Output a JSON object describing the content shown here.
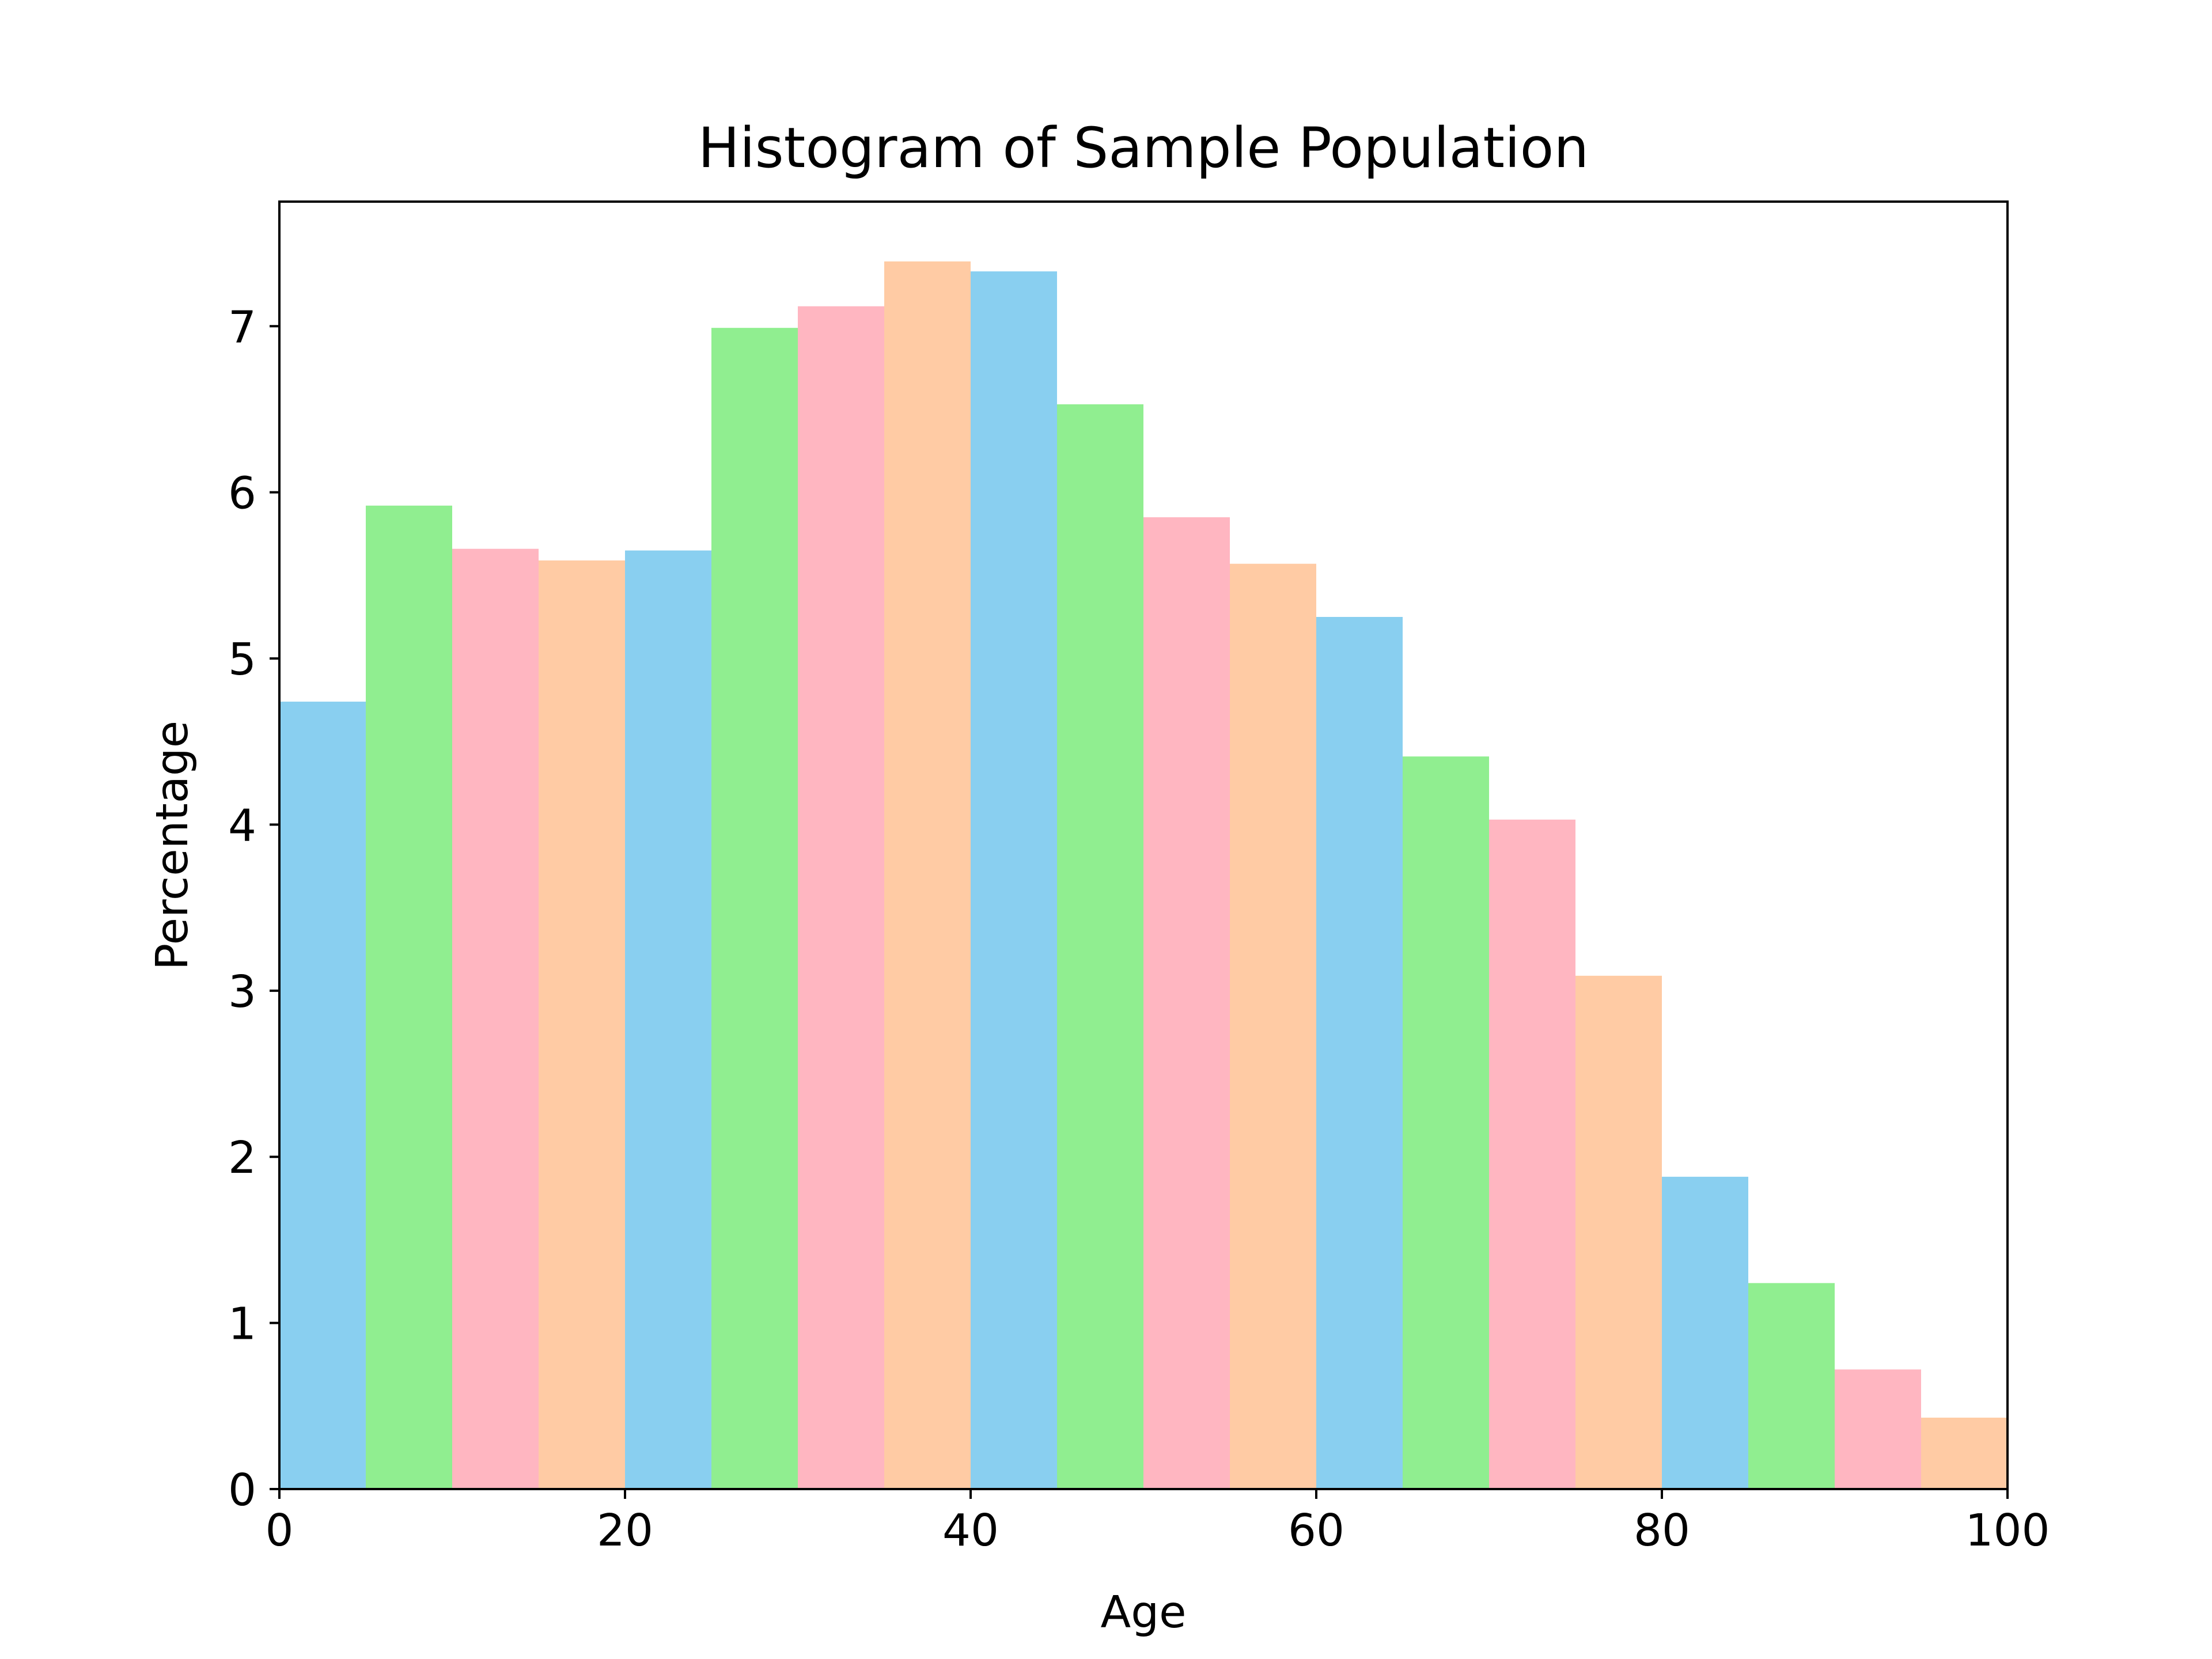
{
  "chart_data": {
    "type": "bar",
    "title": "Histogram of Sample Population",
    "xlabel": "Age",
    "ylabel": "Percentage",
    "xlim": [
      0,
      100
    ],
    "ylim": [
      0,
      7.75
    ],
    "bin_width": 5,
    "bins": [
      {
        "x0": 0,
        "x1": 5,
        "value": 4.74
      },
      {
        "x0": 5,
        "x1": 10,
        "value": 5.92
      },
      {
        "x0": 10,
        "x1": 15,
        "value": 5.66
      },
      {
        "x0": 15,
        "x1": 20,
        "value": 5.59
      },
      {
        "x0": 20,
        "x1": 25,
        "value": 5.65
      },
      {
        "x0": 25,
        "x1": 30,
        "value": 6.99
      },
      {
        "x0": 30,
        "x1": 35,
        "value": 7.12
      },
      {
        "x0": 35,
        "x1": 40,
        "value": 7.39
      },
      {
        "x0": 40,
        "x1": 45,
        "value": 7.33
      },
      {
        "x0": 45,
        "x1": 50,
        "value": 6.53
      },
      {
        "x0": 50,
        "x1": 55,
        "value": 5.85
      },
      {
        "x0": 55,
        "x1": 60,
        "value": 5.57
      },
      {
        "x0": 60,
        "x1": 65,
        "value": 5.25
      },
      {
        "x0": 65,
        "x1": 70,
        "value": 4.41
      },
      {
        "x0": 70,
        "x1": 75,
        "value": 4.03
      },
      {
        "x0": 75,
        "x1": 80,
        "value": 3.09
      },
      {
        "x0": 80,
        "x1": 85,
        "value": 1.88
      },
      {
        "x0": 85,
        "x1": 90,
        "value": 1.24
      },
      {
        "x0": 90,
        "x1": 95,
        "value": 0.72
      },
      {
        "x0": 95,
        "x1": 100,
        "value": 0.43
      }
    ],
    "bar_colors": [
      "#89CFF0",
      "#90EE90",
      "#FFB6C1",
      "#FFCBA4"
    ],
    "x_ticks": [
      "0",
      "20",
      "40",
      "60",
      "80",
      "100"
    ],
    "y_ticks": [
      "0",
      "1",
      "2",
      "3",
      "4",
      "5",
      "6",
      "7"
    ],
    "grid": false,
    "legend": "none"
  }
}
